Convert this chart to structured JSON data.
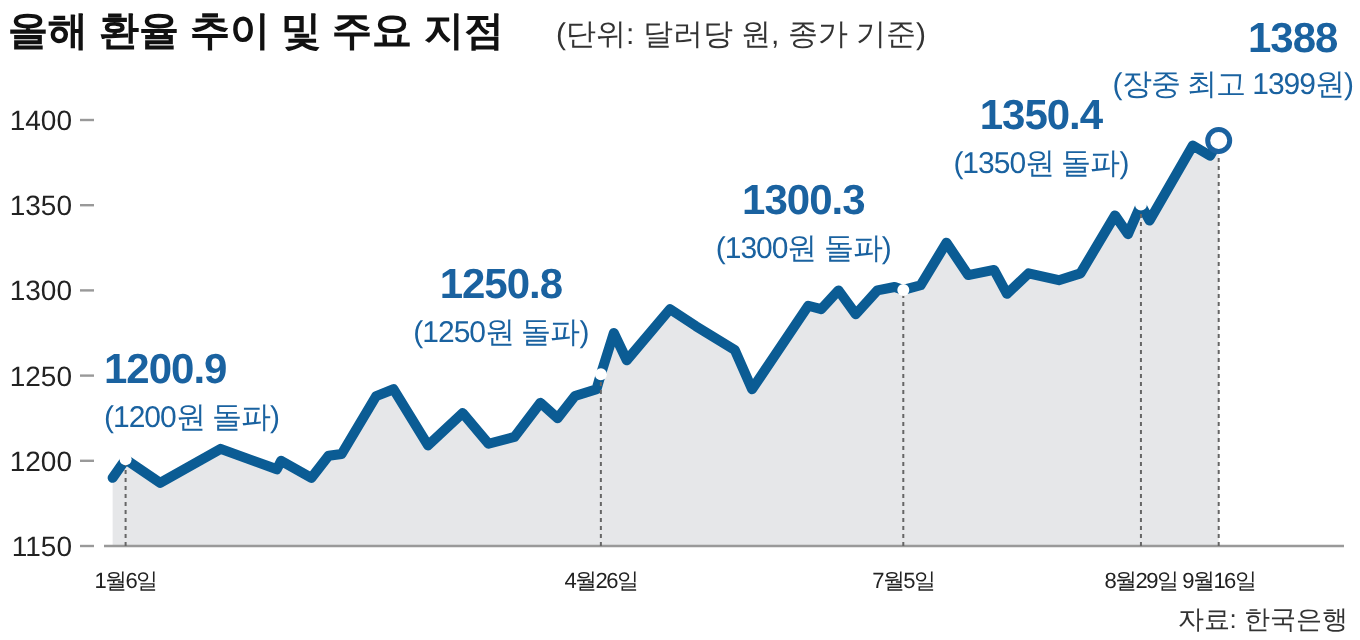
{
  "chart_data": {
    "type": "area",
    "title": "올해 환율 추이 및 주요 지점",
    "subtitle": "(단위: 달러당 원, 종가 기준)",
    "x": [
      "--01-03",
      "--01-06",
      "--01-14",
      "--01-28",
      "--02-10",
      "--02-11",
      "--02-18",
      "--02-22",
      "--02-25",
      "--03-05",
      "--03-09",
      "--03-17",
      "--03-25",
      "--03-31",
      "--04-06",
      "--04-12",
      "--04-16",
      "--04-20",
      "--04-25",
      "--04-26",
      "--04-29",
      "--05-02",
      "--05-12",
      "--05-18",
      "--05-27",
      "--05-31",
      "--06-13",
      "--06-16",
      "--06-20",
      "--06-24",
      "--06-29",
      "--07-03",
      "--07-05",
      "--07-09",
      "--07-15",
      "--07-20",
      "--07-26",
      "--07-29",
      "--08-03",
      "--08-10",
      "--08-15",
      "--08-23",
      "--08-26",
      "--08-29",
      "--08-31",
      "--09-10",
      "--09-14",
      "--09-16"
    ],
    "series": [
      {
        "color": "#0b5c94",
        "values": [
          1190,
          1200.9,
          1187,
          1207,
          1195,
          1200,
          1190,
          1203,
          1204,
          1238,
          1242,
          1209,
          1228,
          1210,
          1214,
          1234,
          1225,
          1238,
          1242,
          1250.8,
          1275,
          1259,
          1289,
          1279,
          1265,
          1242,
          1291,
          1289,
          1300,
          1286,
          1300,
          1302,
          1300.3,
          1303,
          1328,
          1309,
          1312,
          1298,
          1310,
          1306,
          1310,
          1344,
          1333,
          1350.4,
          1341,
          1385,
          1379,
          1388
        ]
      }
    ],
    "xlim": [
      "--01-01",
      "--10-15"
    ],
    "xticks": [
      {
        "value": "--01-06",
        "label": "1월6일"
      },
      {
        "value": "--04-26",
        "label": "4월26일"
      },
      {
        "value": "--07-05",
        "label": "7월5일"
      },
      {
        "value": "--08-29",
        "label": "8월29일"
      },
      {
        "value": "--09-16",
        "label": "9월16일"
      }
    ],
    "ylim": [
      1150,
      1400
    ],
    "yticks": [
      1150,
      1200,
      1250,
      1300,
      1350,
      1400
    ],
    "annotations": [
      {
        "text": "1200.9",
        "x": "--01-06",
        "y": 1200.9
      },
      {
        "text": "(1200원 돌파)",
        "x": "--01-06",
        "y": 1200.9
      },
      {
        "text": "1250.8",
        "x": "--04-26",
        "y": 1250.8
      },
      {
        "text": "(1250원 돌파)",
        "x": "--04-26",
        "y": 1250.8
      },
      {
        "text": "1300.3",
        "x": "--07-05",
        "y": 1300.3
      },
      {
        "text": "(1300원 돌파)",
        "x": "--07-05",
        "y": 1300.3
      },
      {
        "text": "1350.4",
        "x": "--08-29",
        "y": 1350.4
      },
      {
        "text": "(1350원 돌파)",
        "x": "--08-29",
        "y": 1350.4
      },
      {
        "text": "1388",
        "x": "--09-16",
        "y": 1388
      },
      {
        "text": "(장중 최고 1399원)",
        "x": "--09-16",
        "y": 1388
      },
      "자료: 한국은행"
    ]
  }
}
